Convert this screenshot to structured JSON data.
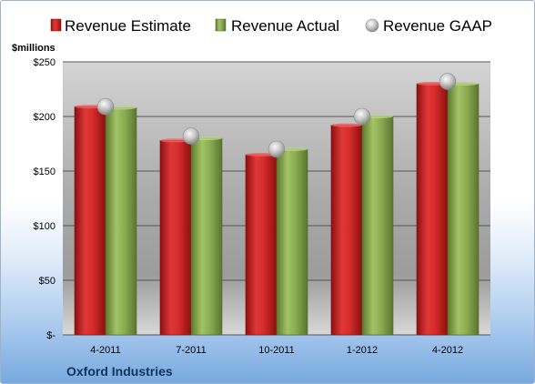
{
  "company": "Oxford Industries",
  "chart_data": {
    "type": "bar",
    "title": "",
    "xlabel": "",
    "ylabel": "$millions",
    "ylim": [
      0,
      250
    ],
    "yticks": [
      0,
      50,
      100,
      150,
      200,
      250
    ],
    "ytick_labels": [
      "$-",
      "$50",
      "$100",
      "$150",
      "$200",
      "$250"
    ],
    "categories": [
      "4-2011",
      "7-2011",
      "10-2011",
      "1-2012",
      "4-2012"
    ],
    "series": [
      {
        "name": "Revenue Estimate",
        "kind": "bar",
        "color": "#d42a2a",
        "values": [
          209,
          178,
          165,
          192,
          230
        ]
      },
      {
        "name": "Revenue Actual",
        "kind": "bar",
        "color": "#8dad53",
        "values": [
          208,
          180,
          170,
          200,
          230
        ]
      },
      {
        "name": "Revenue GAAP",
        "kind": "marker",
        "color": "#b4b4b4",
        "values": [
          209,
          182,
          170,
          200,
          232
        ]
      }
    ],
    "grid": true,
    "legend": "top"
  }
}
